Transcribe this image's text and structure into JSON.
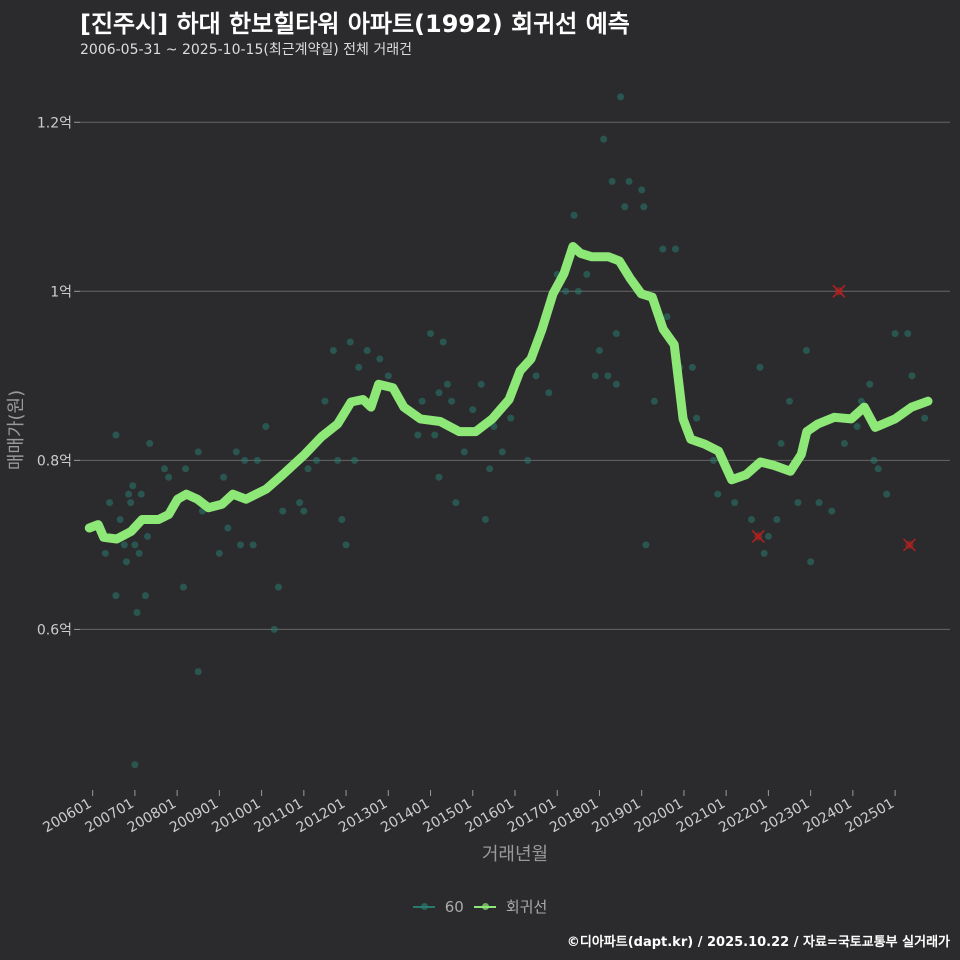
{
  "title": "[진주시] 하대 한보힐타워 아파트(1992) 회귀선 예측",
  "subtitle": "2006-05-31 ~ 2025-10-15(최근계약일) 전체 거래건",
  "caption": "©디아파트(dapt.kr) / 2025.10.22 / 자료=국토교통부 실거래가",
  "colors": {
    "background": "#2b2b2d",
    "scatter": "#2a7a70",
    "line": "#8ee878",
    "outlier": "#b22222",
    "grid": "#666666"
  },
  "chart_data": {
    "type": "scatter",
    "title": "[진주시] 하대 한보힐타워 아파트(1992) 회귀선 예측",
    "xlabel": "거래년월",
    "ylabel": "매매가(원)",
    "xlim": [
      2005.7,
      2026.3
    ],
    "ylim": [
      0.41,
      1.25
    ],
    "y_ticks": [
      {
        "value": 0.6,
        "label": "0.6억"
      },
      {
        "value": 0.8,
        "label": "0.8억"
      },
      {
        "value": 1.0,
        "label": "1억"
      },
      {
        "value": 1.2,
        "label": "1.2억"
      }
    ],
    "x_ticks": [
      {
        "value": 2006,
        "label": "200601"
      },
      {
        "value": 2007,
        "label": "200701"
      },
      {
        "value": 2008,
        "label": "200801"
      },
      {
        "value": 2009,
        "label": "200901"
      },
      {
        "value": 2010,
        "label": "201001"
      },
      {
        "value": 2011,
        "label": "201101"
      },
      {
        "value": 2012,
        "label": "201201"
      },
      {
        "value": 2013,
        "label": "201301"
      },
      {
        "value": 2014,
        "label": "201401"
      },
      {
        "value": 2015,
        "label": "201501"
      },
      {
        "value": 2016,
        "label": "201601"
      },
      {
        "value": 2017,
        "label": "201701"
      },
      {
        "value": 2018,
        "label": "201801"
      },
      {
        "value": 2019,
        "label": "201901"
      },
      {
        "value": 2020,
        "label": "202001"
      },
      {
        "value": 2021,
        "label": "202101"
      },
      {
        "value": 2022,
        "label": "202201"
      },
      {
        "value": 2023,
        "label": "202301"
      },
      {
        "value": 2024,
        "label": "202401"
      },
      {
        "value": 2025,
        "label": "202501"
      }
    ],
    "legend": {
      "placement": "bottom",
      "entries": [
        "60",
        "회귀선"
      ]
    },
    "grid": true,
    "series": [
      {
        "name": "60",
        "type": "scatter",
        "points": [
          [
            2006.3,
            0.69
          ],
          [
            2006.4,
            0.75
          ],
          [
            2006.55,
            0.83
          ],
          [
            2006.55,
            0.64
          ],
          [
            2006.65,
            0.73
          ],
          [
            2006.75,
            0.7
          ],
          [
            2006.8,
            0.68
          ],
          [
            2006.85,
            0.76
          ],
          [
            2006.9,
            0.75
          ],
          [
            2006.95,
            0.77
          ],
          [
            2007.0,
            0.7
          ],
          [
            2007.05,
            0.62
          ],
          [
            2007.1,
            0.69
          ],
          [
            2007.15,
            0.76
          ],
          [
            2007.25,
            0.64
          ],
          [
            2007.3,
            0.71
          ],
          [
            2007.35,
            0.82
          ],
          [
            2007.0,
            0.44
          ],
          [
            2007.7,
            0.79
          ],
          [
            2007.8,
            0.78
          ],
          [
            2008.2,
            0.79
          ],
          [
            2008.15,
            0.65
          ],
          [
            2008.5,
            0.81
          ],
          [
            2008.5,
            0.55
          ],
          [
            2008.6,
            0.74
          ],
          [
            2009.0,
            0.69
          ],
          [
            2009.1,
            0.78
          ],
          [
            2009.2,
            0.72
          ],
          [
            2009.4,
            0.81
          ],
          [
            2009.5,
            0.7
          ],
          [
            2009.6,
            0.8
          ],
          [
            2009.8,
            0.7
          ],
          [
            2009.9,
            0.8
          ],
          [
            2010.1,
            0.84
          ],
          [
            2010.3,
            0.6
          ],
          [
            2010.4,
            0.65
          ],
          [
            2010.5,
            0.74
          ],
          [
            2010.9,
            0.75
          ],
          [
            2011.0,
            0.74
          ],
          [
            2011.1,
            0.79
          ],
          [
            2011.3,
            0.8
          ],
          [
            2011.5,
            0.87
          ],
          [
            2011.7,
            0.93
          ],
          [
            2011.8,
            0.8
          ],
          [
            2011.9,
            0.73
          ],
          [
            2012.0,
            0.7
          ],
          [
            2012.1,
            0.94
          ],
          [
            2012.2,
            0.8
          ],
          [
            2012.3,
            0.91
          ],
          [
            2012.5,
            0.93
          ],
          [
            2012.8,
            0.92
          ],
          [
            2013.0,
            0.9
          ],
          [
            2013.4,
            0.86
          ],
          [
            2013.7,
            0.83
          ],
          [
            2013.8,
            0.87
          ],
          [
            2014.0,
            0.95
          ],
          [
            2014.1,
            0.83
          ],
          [
            2014.2,
            0.88
          ],
          [
            2014.3,
            0.94
          ],
          [
            2014.2,
            0.78
          ],
          [
            2014.4,
            0.89
          ],
          [
            2014.6,
            0.75
          ],
          [
            2014.5,
            0.87
          ],
          [
            2014.8,
            0.81
          ],
          [
            2015.0,
            0.86
          ],
          [
            2015.2,
            0.89
          ],
          [
            2015.3,
            0.73
          ],
          [
            2015.4,
            0.79
          ],
          [
            2015.5,
            0.84
          ],
          [
            2015.7,
            0.81
          ],
          [
            2015.9,
            0.85
          ],
          [
            2016.1,
            0.9
          ],
          [
            2016.3,
            0.8
          ],
          [
            2016.5,
            0.9
          ],
          [
            2016.7,
            0.97
          ],
          [
            2016.8,
            0.88
          ],
          [
            2017.0,
            1.02
          ],
          [
            2017.2,
            1.0
          ],
          [
            2017.4,
            1.09
          ],
          [
            2017.5,
            1.0
          ],
          [
            2017.7,
            1.02
          ],
          [
            2017.9,
            0.9
          ],
          [
            2018.0,
            0.93
          ],
          [
            2018.1,
            1.18
          ],
          [
            2018.2,
            0.9
          ],
          [
            2018.3,
            1.13
          ],
          [
            2018.4,
            0.89
          ],
          [
            2018.4,
            0.95
          ],
          [
            2018.5,
            1.23
          ],
          [
            2018.6,
            1.1
          ],
          [
            2018.7,
            1.13
          ],
          [
            2018.9,
            1.0
          ],
          [
            2019.0,
            1.12
          ],
          [
            2019.05,
            1.1
          ],
          [
            2019.1,
            0.7
          ],
          [
            2019.3,
            0.87
          ],
          [
            2019.5,
            1.05
          ],
          [
            2019.6,
            0.97
          ],
          [
            2019.8,
            1.05
          ],
          [
            2019.9,
            0.91
          ],
          [
            2020.2,
            0.91
          ],
          [
            2020.3,
            0.85
          ],
          [
            2020.7,
            0.8
          ],
          [
            2020.8,
            0.76
          ],
          [
            2021.2,
            0.75
          ],
          [
            2021.6,
            0.73
          ],
          [
            2021.8,
            0.91
          ],
          [
            2021.9,
            0.69
          ],
          [
            2022.0,
            0.71
          ],
          [
            2022.2,
            0.73
          ],
          [
            2022.3,
            0.82
          ],
          [
            2022.5,
            0.87
          ],
          [
            2022.7,
            0.75
          ],
          [
            2022.9,
            0.93
          ],
          [
            2023.0,
            0.68
          ],
          [
            2023.2,
            0.75
          ],
          [
            2023.5,
            0.74
          ],
          [
            2023.8,
            0.82
          ],
          [
            2024.1,
            0.84
          ],
          [
            2024.2,
            0.87
          ],
          [
            2024.4,
            0.89
          ],
          [
            2024.5,
            0.8
          ],
          [
            2024.6,
            0.79
          ],
          [
            2024.8,
            0.76
          ],
          [
            2025.0,
            0.95
          ],
          [
            2025.3,
            0.95
          ],
          [
            2025.4,
            0.9
          ],
          [
            2025.7,
            0.85
          ]
        ]
      },
      {
        "name": "회귀선",
        "type": "line",
        "points": [
          [
            2005.92,
            0.72
          ],
          [
            2006.13,
            0.724
          ],
          [
            2006.26,
            0.709
          ],
          [
            2006.57,
            0.707
          ],
          [
            2006.91,
            0.716
          ],
          [
            2007.17,
            0.73
          ],
          [
            2007.56,
            0.73
          ],
          [
            2007.8,
            0.736
          ],
          [
            2008.01,
            0.754
          ],
          [
            2008.22,
            0.76
          ],
          [
            2008.48,
            0.754
          ],
          [
            2008.74,
            0.744
          ],
          [
            2009.06,
            0.748
          ],
          [
            2009.32,
            0.76
          ],
          [
            2009.63,
            0.754
          ],
          [
            2010.11,
            0.766
          ],
          [
            2010.5,
            0.783
          ],
          [
            2011.02,
            0.807
          ],
          [
            2011.42,
            0.828
          ],
          [
            2011.8,
            0.843
          ],
          [
            2012.12,
            0.869
          ],
          [
            2012.4,
            0.872
          ],
          [
            2012.59,
            0.863
          ],
          [
            2012.77,
            0.89
          ],
          [
            2013.11,
            0.886
          ],
          [
            2013.37,
            0.863
          ],
          [
            2013.76,
            0.849
          ],
          [
            2014.23,
            0.846
          ],
          [
            2014.68,
            0.834
          ],
          [
            2015.07,
            0.834
          ],
          [
            2015.46,
            0.849
          ],
          [
            2015.86,
            0.872
          ],
          [
            2016.12,
            0.906
          ],
          [
            2016.38,
            0.92
          ],
          [
            2016.64,
            0.955
          ],
          [
            2016.9,
            0.997
          ],
          [
            2017.16,
            1.021
          ],
          [
            2017.37,
            1.053
          ],
          [
            2017.55,
            1.045
          ],
          [
            2017.81,
            1.041
          ],
          [
            2018.21,
            1.041
          ],
          [
            2018.47,
            1.036
          ],
          [
            2018.73,
            1.015
          ],
          [
            2018.99,
            0.997
          ],
          [
            2019.25,
            0.993
          ],
          [
            2019.51,
            0.955
          ],
          [
            2019.77,
            0.937
          ],
          [
            2019.98,
            0.849
          ],
          [
            2020.16,
            0.825
          ],
          [
            2020.5,
            0.819
          ],
          [
            2020.82,
            0.811
          ],
          [
            2021.13,
            0.777
          ],
          [
            2021.47,
            0.783
          ],
          [
            2021.81,
            0.798
          ],
          [
            2022.13,
            0.794
          ],
          [
            2022.52,
            0.787
          ],
          [
            2022.78,
            0.807
          ],
          [
            2022.91,
            0.834
          ],
          [
            2023.17,
            0.843
          ],
          [
            2023.56,
            0.851
          ],
          [
            2023.96,
            0.849
          ],
          [
            2024.27,
            0.863
          ],
          [
            2024.53,
            0.839
          ],
          [
            2025.0,
            0.849
          ],
          [
            2025.39,
            0.863
          ],
          [
            2025.78,
            0.87
          ]
        ]
      },
      {
        "name": "outliers",
        "type": "scatter",
        "points": [
          [
            2021.76,
            0.71
          ],
          [
            2023.67,
            1.0
          ],
          [
            2025.34,
            0.7
          ]
        ]
      }
    ]
  }
}
